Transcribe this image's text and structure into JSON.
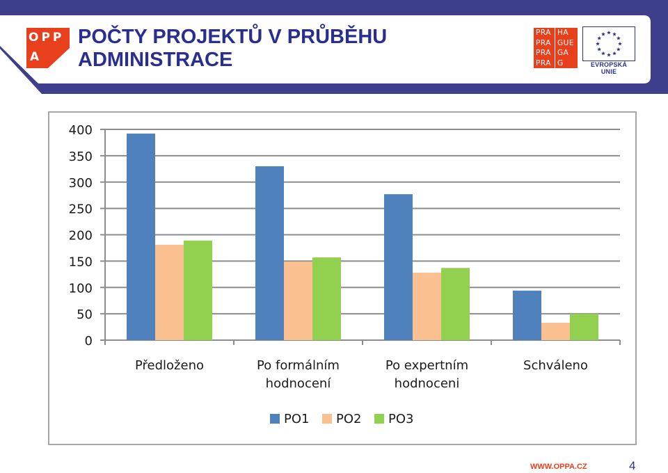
{
  "header": {
    "title": "POČTY PROJEKTŮ V PRŮBĚHU ADMINISTRACE",
    "logo_oppa": {
      "row1": "OPP",
      "row2": "A"
    },
    "logo_praha": {
      "left": [
        "PRA",
        "PRA",
        "PRA",
        "PRA"
      ],
      "right": [
        "HA",
        "GUE",
        "GA",
        "G"
      ]
    },
    "eu_label": "EVROPSKÁ UNIE"
  },
  "footer": {
    "url": "WWW.OPPA.CZ",
    "page": "4"
  },
  "colors": {
    "title": "#2a2f8f",
    "brand_red": "#e8401c",
    "band": "#3d3f8c",
    "po1": "#4f81bd",
    "po2": "#fac090",
    "po3": "#92d050"
  },
  "chart_data": {
    "type": "bar",
    "categories": [
      "Předloženo",
      "Po formálním hodnocení",
      "Po expertním hodnoceni",
      "Schváleno"
    ],
    "category_lines": [
      [
        "Předloženo"
      ],
      [
        "Po formálním",
        "hodnocení"
      ],
      [
        "Po expertním",
        "hodnoceni"
      ],
      [
        "Schváleno"
      ]
    ],
    "series": [
      {
        "name": "PO1",
        "color": "#4f81bd",
        "values": [
          392,
          330,
          277,
          94
        ]
      },
      {
        "name": "PO2",
        "color": "#fac090",
        "values": [
          181,
          149,
          128,
          33
        ]
      },
      {
        "name": "PO3",
        "color": "#92d050",
        "values": [
          189,
          157,
          137,
          50
        ]
      }
    ],
    "ylim": [
      0,
      400
    ],
    "yticks": [
      "0",
      "50",
      "100",
      "150",
      "200",
      "250",
      "300",
      "350",
      "400"
    ],
    "grid": true,
    "legend": "bottom"
  }
}
